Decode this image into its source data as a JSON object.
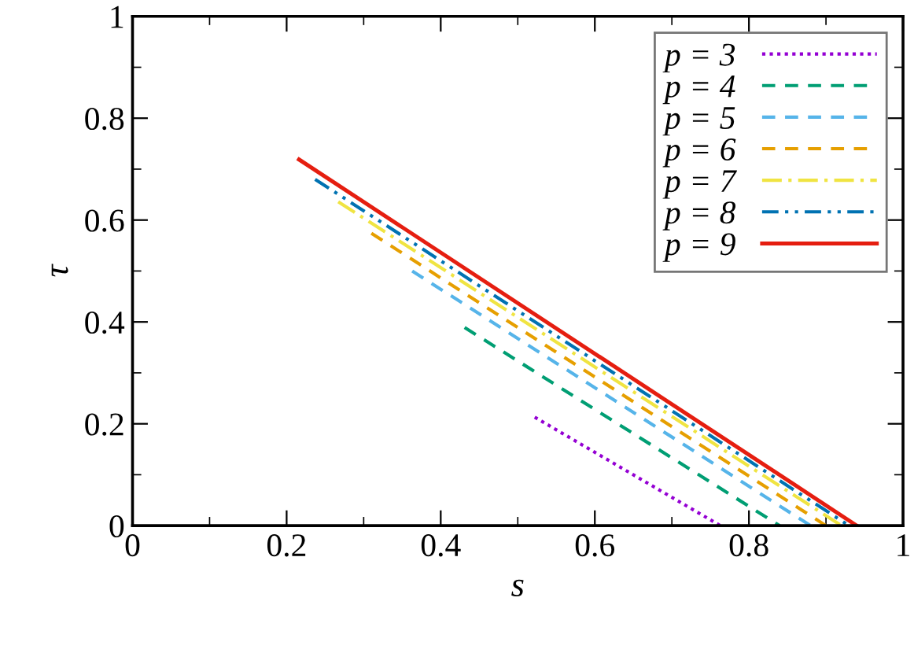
{
  "chart_data": {
    "type": "line",
    "xlabel": "s",
    "ylabel": "τ",
    "xlim": [
      0,
      1
    ],
    "ylim": [
      0,
      1
    ],
    "xticks": [
      0,
      0.2,
      0.4,
      0.6,
      0.8,
      1
    ],
    "yticks": [
      0,
      0.2,
      0.4,
      0.6,
      0.8,
      1
    ],
    "grid": false,
    "legend": "top right",
    "marker": "none",
    "series": [
      {
        "name": "p = 3",
        "color": "#9400d3",
        "line_style": "dotted",
        "x": [
          0.522,
          0.763
        ],
        "values": [
          0.213,
          0
        ]
      },
      {
        "name": "p = 4",
        "color": "#009e73",
        "line_style": "dashed",
        "x": [
          0.431,
          0.84
        ],
        "values": [
          0.389,
          0
        ]
      },
      {
        "name": "p = 5",
        "color": "#56b4e9",
        "line_style": "dashed",
        "x": [
          0.363,
          0.88
        ],
        "values": [
          0.5,
          0
        ]
      },
      {
        "name": "p = 6",
        "color": "#e69f00",
        "line_style": "dashed",
        "x": [
          0.31,
          0.9
        ],
        "values": [
          0.574,
          0
        ]
      },
      {
        "name": "p = 7",
        "color": "#f0e442",
        "line_style": "dashdot",
        "x": [
          0.267,
          0.92
        ],
        "values": [
          0.636,
          0
        ]
      },
      {
        "name": "p = 8",
        "color": "#0072b2",
        "line_style": "dashdotdot",
        "x": [
          0.237,
          0.93
        ],
        "values": [
          0.68,
          0
        ]
      },
      {
        "name": "p = 9",
        "color": "#e51e10",
        "line_style": "solid",
        "x": [
          0.216,
          0.94
        ],
        "values": [
          0.719,
          0
        ]
      }
    ]
  }
}
